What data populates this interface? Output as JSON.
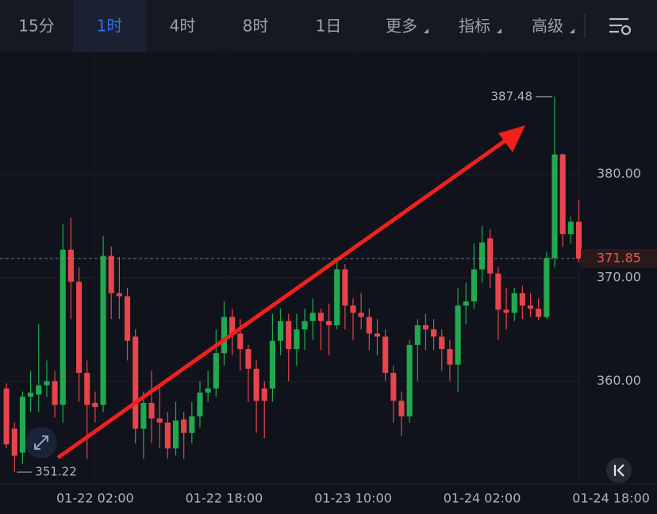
{
  "toolbar": {
    "tabs": [
      "15分",
      "1时",
      "4时",
      "8时",
      "1日",
      "更多",
      "指标",
      "高级"
    ],
    "active": 1
  },
  "chart_data": {
    "type": "candlestick",
    "up_color": "#22a94f",
    "down_color": "#e8444c",
    "open": [
      359.3,
      355.4,
      353.1,
      358.5,
      358.7,
      359.6,
      360.0,
      357.7,
      372.7,
      369.6,
      360.8,
      357.9,
      357.7,
      372.1,
      368.5,
      368.2,
      364.3,
      355.4,
      357.9,
      356.4,
      356.0,
      353.5,
      356.3,
      355.0,
      356.6,
      358.9,
      359.3,
      362.7,
      366.2,
      364.6,
      363.1,
      361.2,
      359.3,
      359.3,
      363.9,
      365.8,
      363.1,
      365.0,
      365.8,
      366.6,
      365.8,
      365.4,
      370.8,
      367.3,
      366.6,
      366.2,
      364.6,
      364.3,
      360.8,
      358.1,
      356.6,
      363.5,
      365.4,
      365.0,
      364.3,
      363.1,
      361.6,
      367.3,
      367.7,
      370.8,
      373.8,
      370.4,
      366.9,
      366.6,
      368.5,
      367.3,
      367.0,
      366.2,
      371.9,
      381.9,
      374.2,
      375.4
    ],
    "high": [
      359.8,
      356.0,
      359.0,
      361.0,
      365.5,
      362.0,
      361.0,
      375.2,
      375.8,
      371.0,
      362.0,
      359.0,
      374.0,
      373.0,
      372.0,
      369.0,
      365.0,
      359.0,
      361.0,
      359.5,
      357.0,
      358.0,
      357.0,
      358.0,
      360.0,
      361.0,
      365.0,
      367.7,
      367.0,
      366.0,
      363.5,
      362.0,
      360.0,
      366.5,
      367.0,
      366.5,
      366.5,
      367.0,
      368.0,
      367.0,
      367.5,
      371.5,
      371.3,
      368.0,
      368.5,
      367.0,
      366.0,
      365.0,
      361.5,
      359.0,
      364.0,
      366.0,
      366.5,
      366.0,
      365.0,
      364.0,
      369.0,
      369.5,
      373.3,
      375.0,
      374.7,
      371.0,
      369.0,
      369.0,
      369.2,
      368.5,
      368.0,
      372.5,
      387.48,
      382.0,
      375.9,
      377.5
    ],
    "low": [
      353.5,
      351.22,
      352.0,
      357.0,
      357.0,
      358.5,
      356.5,
      356.0,
      366.0,
      358.0,
      352.5,
      356.0,
      357.0,
      366.0,
      366.0,
      362.0,
      354.0,
      352.5,
      354.0,
      353.5,
      352.5,
      352.8,
      352.5,
      354.0,
      355.5,
      358.0,
      358.5,
      361.5,
      362.5,
      361.0,
      358.0,
      355.0,
      354.5,
      358.0,
      362.5,
      360.0,
      361.5,
      363.0,
      364.0,
      363.0,
      362.5,
      365.0,
      365.0,
      364.0,
      365.0,
      363.0,
      362.5,
      360.0,
      356.0,
      354.7,
      356.0,
      360.0,
      363.0,
      363.0,
      361.0,
      360.0,
      359.0,
      365.5,
      367.0,
      369.5,
      369.0,
      364.0,
      365.0,
      365.8,
      366.0,
      366.2,
      365.9,
      366.0,
      371.0,
      373.0,
      373.3,
      371.5
    ],
    "close": [
      353.9,
      352.8,
      358.5,
      358.9,
      359.6,
      360.0,
      357.7,
      372.7,
      369.6,
      360.8,
      357.7,
      357.5,
      372.1,
      368.5,
      368.2,
      363.9,
      355.4,
      357.9,
      356.4,
      356.0,
      353.5,
      356.2,
      355.0,
      356.6,
      358.9,
      359.3,
      362.7,
      366.2,
      364.6,
      363.1,
      361.2,
      358.1,
      358.1,
      363.9,
      365.8,
      363.1,
      365.0,
      365.8,
      366.6,
      365.8,
      365.4,
      370.8,
      367.3,
      366.6,
      366.2,
      364.6,
      364.3,
      360.8,
      358.1,
      356.6,
      363.5,
      365.4,
      365.0,
      364.3,
      363.1,
      361.6,
      367.3,
      367.7,
      370.8,
      373.4,
      370.4,
      366.9,
      366.6,
      368.5,
      367.3,
      367.0,
      366.2,
      371.9,
      381.9,
      374.2,
      375.4,
      371.85
    ],
    "xlim": [
      -0.8,
      71.05
    ],
    "xticks": [
      {
        "value": 11,
        "label": "01-22 02:00"
      },
      {
        "value": 27,
        "label": "01-22 18:00"
      },
      {
        "value": 43,
        "label": "01-23 10:00"
      },
      {
        "value": 59,
        "label": "01-24 02:00"
      },
      {
        "value": 75,
        "label": "01-24 18:00"
      }
    ],
    "ylim": [
      350.08,
      391.76
    ],
    "yticks": [
      {
        "value": 360,
        "label": "360.00"
      },
      {
        "value": 370,
        "label": "370.00"
      },
      {
        "value": 380,
        "label": "380.00"
      }
    ],
    "grid": true
  }
}
